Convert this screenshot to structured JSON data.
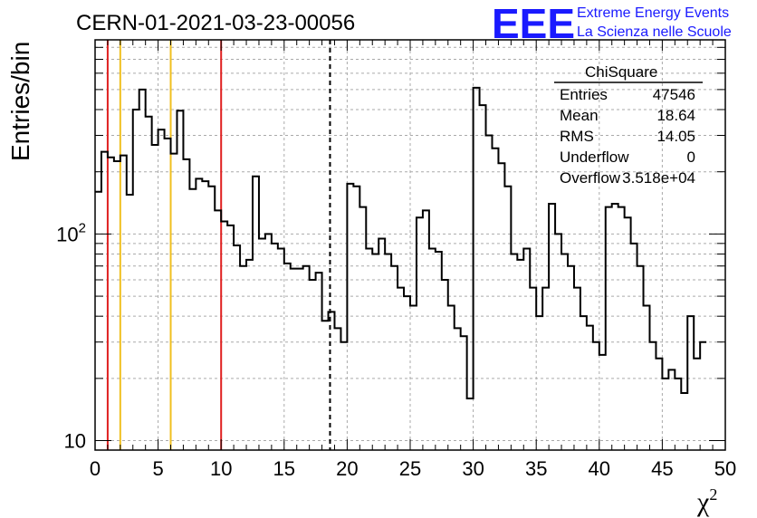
{
  "header": {
    "title": "CERN-01-2021-03-23-00056",
    "logo_text": "EEE",
    "logo_line1": "Extreme Energy Events",
    "logo_line2": "La Scienza nelle Scuole"
  },
  "stats": {
    "name": "ChiSquare",
    "rows": [
      {
        "label": "Entries",
        "value": "47546"
      },
      {
        "label": "Mean",
        "value": "18.64"
      },
      {
        "label": "RMS",
        "value": "14.05"
      },
      {
        "label": "Underflow",
        "value": "0"
      },
      {
        "label": "Overflow",
        "value": "3.518e+04"
      }
    ]
  },
  "colors": {
    "red_line": "#e02020",
    "yellow_line": "#f0c020",
    "histogram": "#000000",
    "logo": "#1a1aff"
  },
  "chart_data": {
    "type": "histogram",
    "xlabel": "χ²",
    "ylabel": "Entries/bin",
    "xlim": [
      0,
      50
    ],
    "ylim": [
      9,
      870
    ],
    "yscale": "log",
    "grid": true,
    "bin_width": 0.5,
    "x_ticks": [
      "0",
      "5",
      "10",
      "15",
      "20",
      "25",
      "30",
      "35",
      "40",
      "45",
      "50"
    ],
    "y_ticks": [
      {
        "value": 10,
        "label": "10"
      },
      {
        "value": 100,
        "label": "10^2"
      }
    ],
    "counts": [
      160,
      250,
      235,
      225,
      240,
      155,
      400,
      500,
      370,
      270,
      320,
      290,
      245,
      395,
      230,
      165,
      185,
      180,
      170,
      130,
      115,
      110,
      88,
      70,
      75,
      190,
      95,
      100,
      90,
      85,
      72,
      68,
      68,
      70,
      60,
      65,
      38,
      42,
      35,
      30,
      175,
      170,
      135,
      85,
      80,
      95,
      80,
      70,
      55,
      50,
      45,
      120,
      130,
      85,
      82,
      60,
      45,
      35,
      32,
      16,
      510,
      420,
      300,
      260,
      220,
      170,
      80,
      75,
      85,
      55,
      40,
      55,
      140,
      100,
      80,
      70,
      55,
      40,
      36,
      30,
      26,
      135,
      140,
      135,
      120,
      90,
      70,
      45,
      30,
      25,
      20,
      22,
      20,
      17,
      40,
      25,
      30
    ],
    "vertical_lines": [
      {
        "x": 1,
        "color": "red"
      },
      {
        "x": 2,
        "color": "yellow"
      },
      {
        "x": 6,
        "color": "yellow"
      },
      {
        "x": 10,
        "color": "red"
      },
      {
        "x": 18.64,
        "color": "black",
        "style": "dashed"
      }
    ]
  }
}
